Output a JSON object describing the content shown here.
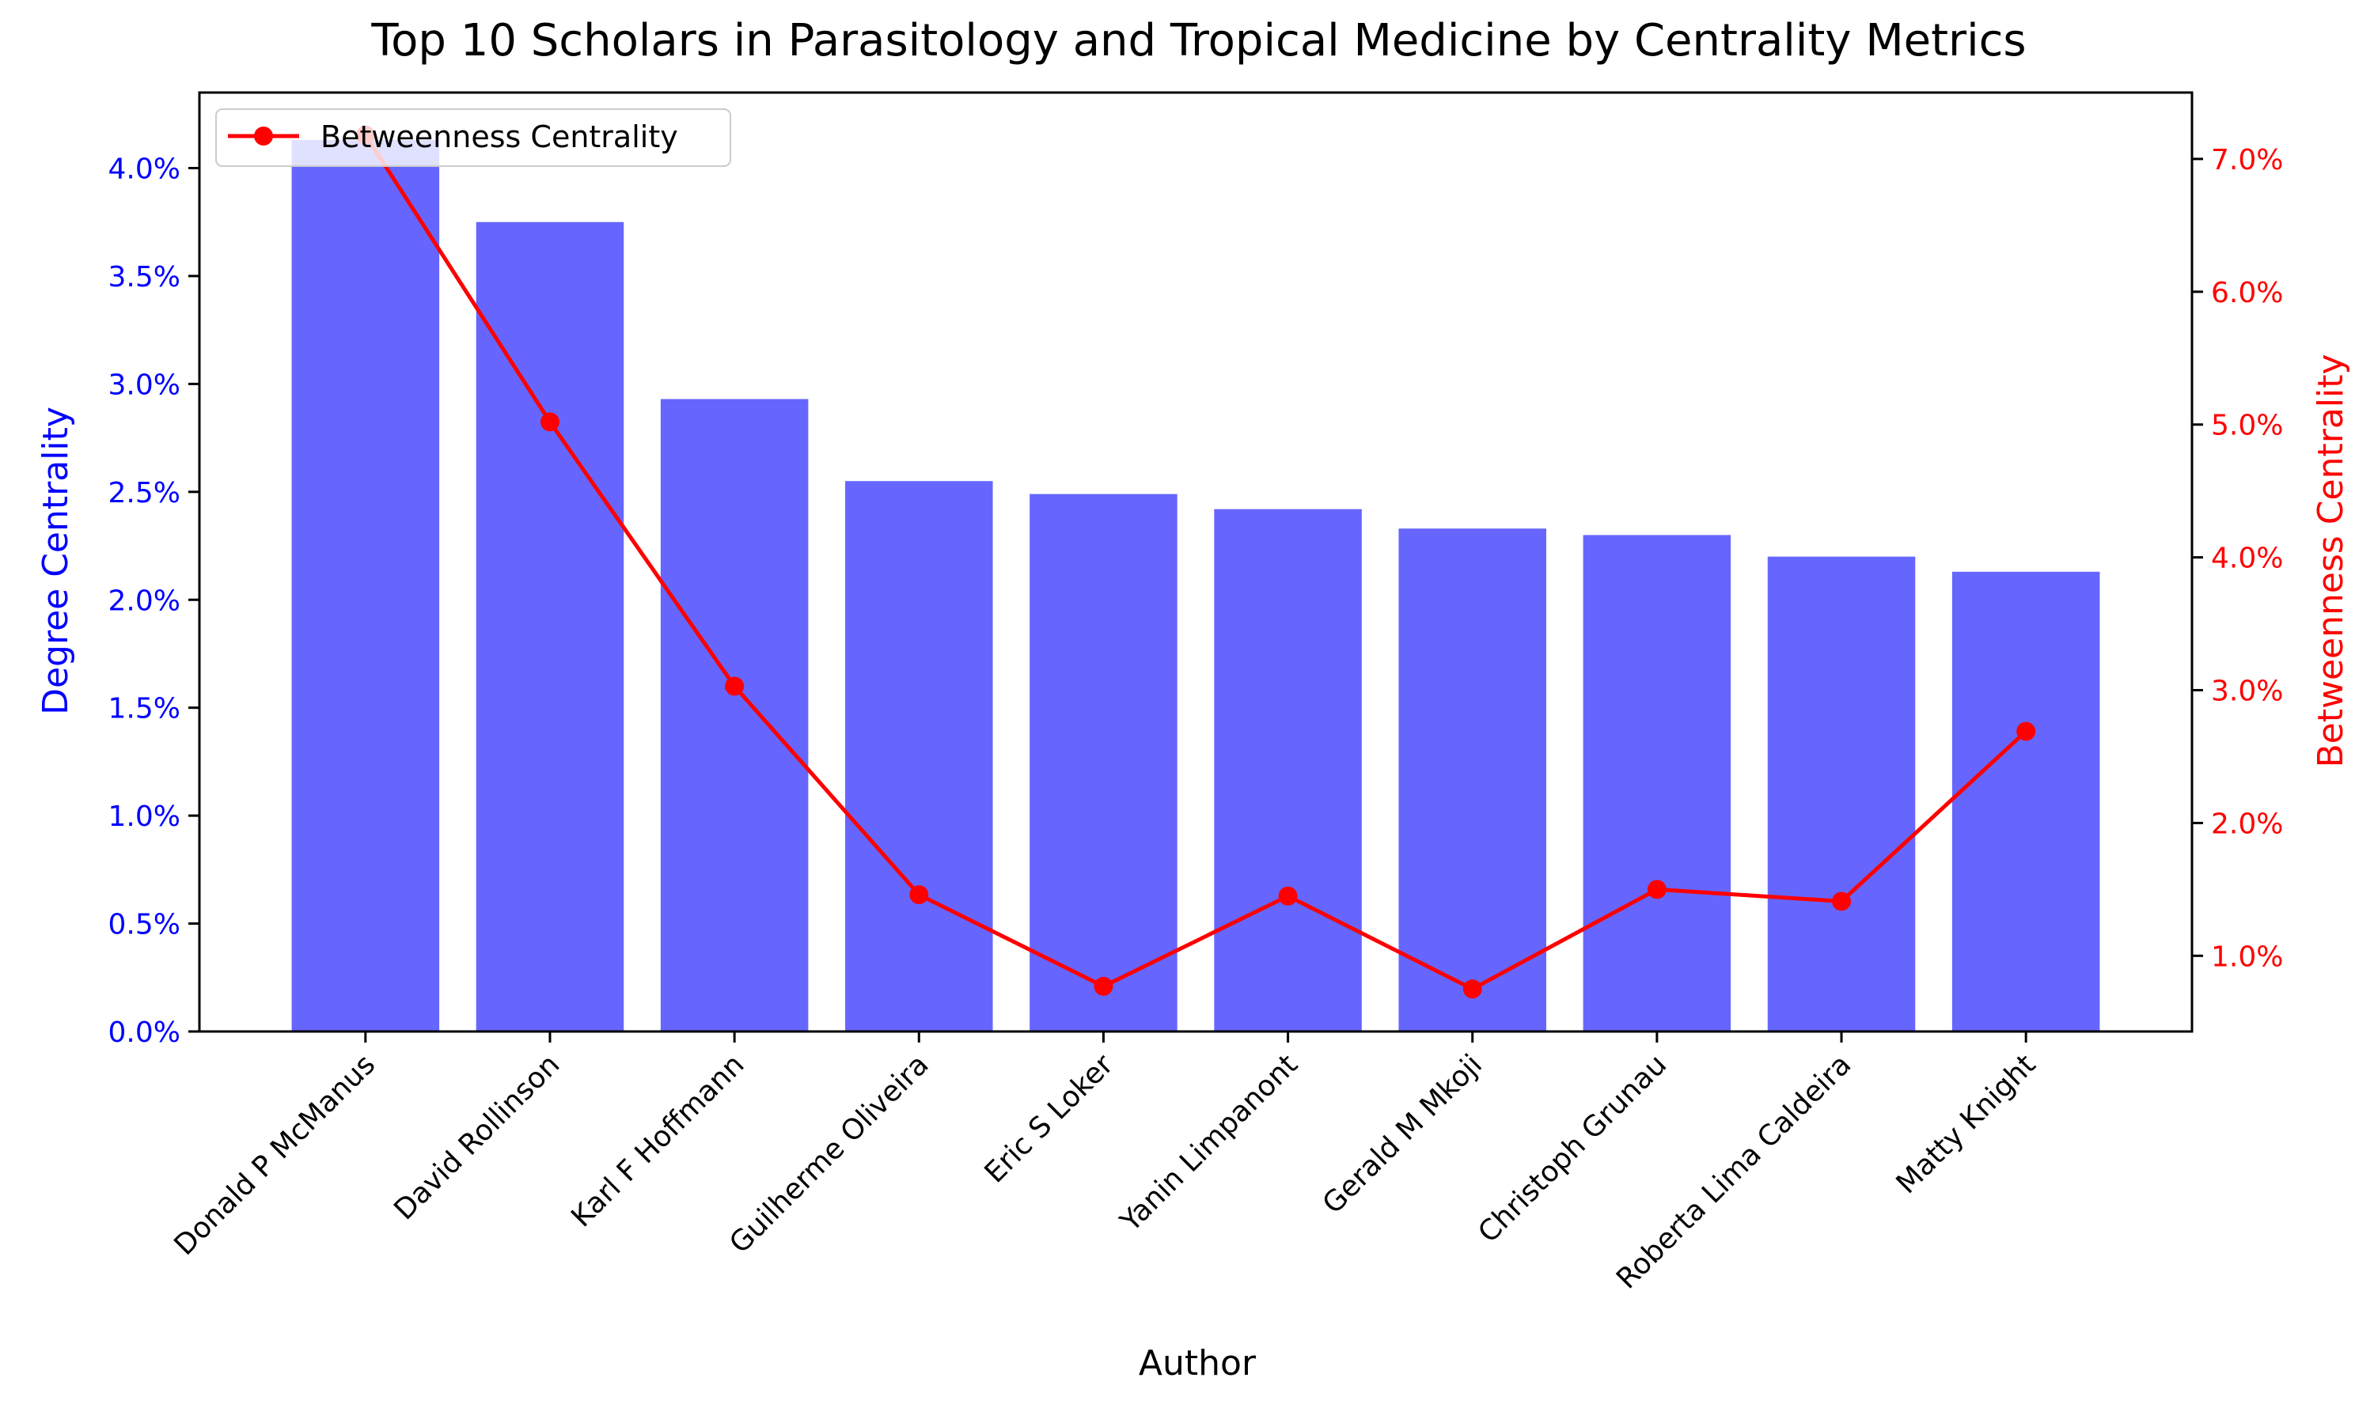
{
  "chart_data": {
    "type": "bar",
    "title": "Top 10 Scholars in Parasitology and Tropical Medicine by Centrality Metrics",
    "xlabel": "Author",
    "ylabel": "Degree Centrality",
    "y2label": "Betweenness Centrality",
    "categories": [
      "Donald P McManus",
      "David Rollinson",
      "Karl F Hoffmann",
      "Guilherme Oliveira",
      "Eric S Loker",
      "Yanin Limpanont",
      "Gerald M Mkoji",
      "Christoph Grunau",
      "Roberta Lima Caldeira",
      "Matty Knight"
    ],
    "ylim": [
      0,
      4.35
    ],
    "y2lim": [
      0.43,
      7.5
    ],
    "yticks": [
      "0.0%",
      "0.5%",
      "1.0%",
      "1.5%",
      "2.0%",
      "2.5%",
      "3.0%",
      "3.5%",
      "4.0%"
    ],
    "y2ticks": [
      "1.0%",
      "2.0%",
      "3.0%",
      "4.0%",
      "5.0%",
      "6.0%",
      "7.0%"
    ],
    "series": [
      {
        "name": "Degree Centrality",
        "type": "bar",
        "axis": "left",
        "color": "#6666ff",
        "values": [
          4.13,
          3.75,
          2.93,
          2.55,
          2.49,
          2.42,
          2.33,
          2.3,
          2.2,
          2.13
        ]
      },
      {
        "name": "Betweenness Centrality",
        "type": "line",
        "axis": "right",
        "color": "#ff0000",
        "values": [
          7.18,
          5.02,
          3.03,
          1.46,
          0.77,
          1.45,
          0.75,
          1.5,
          1.41,
          2.69
        ]
      }
    ],
    "legend": {
      "position": "top-left",
      "entries": [
        "Betweenness Centrality"
      ]
    },
    "left_axis_color": "#0000ff",
    "right_axis_color": "#ff0000",
    "grid": false
  }
}
